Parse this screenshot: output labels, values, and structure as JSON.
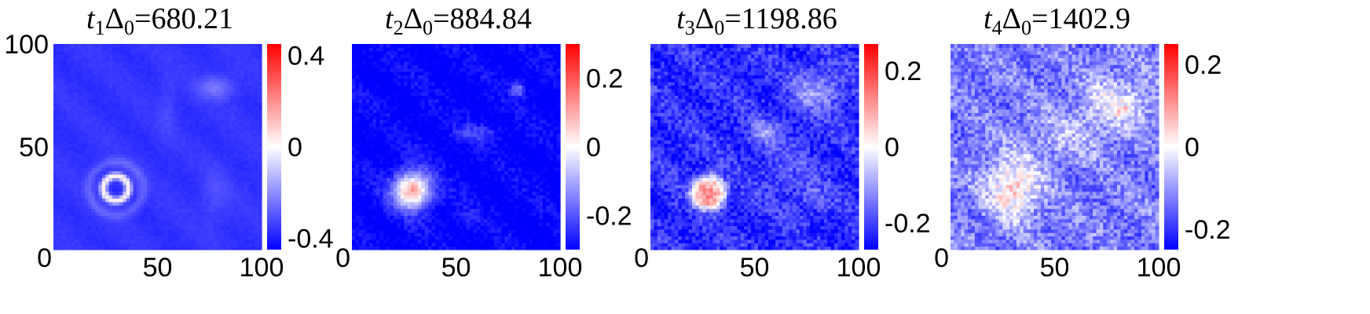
{
  "colors": {
    "low": "#0000ff",
    "mid": "#ffffff",
    "high": "#ff0000",
    "background": "#ffffff"
  },
  "chart_data": [
    {
      "type": "heatmap",
      "title": {
        "var": "t",
        "sub": "1",
        "sym": "Δ",
        "sub0": "0",
        "value": "=680.21"
      },
      "xlim": [
        0,
        100
      ],
      "ylim": [
        0,
        100
      ],
      "x_ticks": [
        "0",
        "50",
        "100"
      ],
      "y_ticks": [
        "0",
        "50",
        "100"
      ],
      "colorbar": {
        "min": -0.45,
        "max": 0.45,
        "ticks": [
          -0.4,
          0,
          0.4
        ],
        "tick_labels": [
          "-0.4",
          "0",
          "0.4"
        ]
      },
      "base": -0.36,
      "features": [
        {
          "shape": "ring",
          "x": 30,
          "y": 30,
          "r": 6,
          "width": 1.8,
          "amp": 0.4
        },
        {
          "shape": "ring",
          "x": 30,
          "y": 30,
          "r": 13,
          "width": 2.5,
          "amp": 0.08
        },
        {
          "shape": "blob",
          "x": 78,
          "y": 79,
          "sx": 6,
          "sy": 4,
          "amp": 0.12
        },
        {
          "shape": "blob",
          "x": 78,
          "y": 26,
          "sx": 5,
          "sy": 9,
          "amp": 0.05
        },
        {
          "shape": "blob",
          "x": 55,
          "y": 70,
          "sx": 3,
          "sy": 12,
          "amp": 0.035
        }
      ],
      "noise": 0.01
    },
    {
      "type": "heatmap",
      "title": {
        "var": "t",
        "sub": "2",
        "sym": "Δ",
        "sub0": "0",
        "value": "=884.84"
      },
      "xlim": [
        0,
        100
      ],
      "ylim": [
        0,
        100
      ],
      "x_ticks": [
        "0",
        "50",
        "100"
      ],
      "y_ticks": [],
      "colorbar": {
        "min": -0.3,
        "max": 0.3,
        "ticks": [
          -0.2,
          0,
          0.2
        ],
        "tick_labels": [
          "-0.2",
          "0",
          "0.2"
        ]
      },
      "base": -0.3,
      "features": [
        {
          "shape": "blob",
          "x": 29,
          "y": 29,
          "sx": 6,
          "sy": 6,
          "amp": 0.36
        },
        {
          "shape": "blob",
          "x": 29,
          "y": 29,
          "sx": 9,
          "sy": 9,
          "amp": 0.06
        },
        {
          "shape": "blob",
          "x": 80,
          "y": 78,
          "sx": 2.5,
          "sy": 2.5,
          "amp": 0.15
        },
        {
          "shape": "blob",
          "x": 60,
          "y": 57,
          "sx": 8,
          "sy": 3,
          "amp": 0.07
        },
        {
          "shape": "blob",
          "x": 55,
          "y": 15,
          "sx": 4,
          "sy": 4,
          "amp": 0.04
        }
      ],
      "noise": 0.03
    },
    {
      "type": "heatmap",
      "title": {
        "var": "t",
        "sub": "3",
        "sym": "Δ",
        "sub0": "0",
        "value": "=1198.86"
      },
      "xlim": [
        0,
        100
      ],
      "ylim": [
        0,
        100
      ],
      "x_ticks": [
        "0",
        "50",
        "100"
      ],
      "y_ticks": [],
      "colorbar": {
        "min": -0.27,
        "max": 0.27,
        "ticks": [
          -0.2,
          0,
          0.2
        ],
        "tick_labels": [
          "-0.2",
          "0",
          "0.2"
        ]
      },
      "base": -0.22,
      "features": [
        {
          "shape": "blob",
          "x": 28,
          "y": 28,
          "sx": 8,
          "sy": 8,
          "amp": 0.34,
          "flat": true
        },
        {
          "shape": "blob",
          "x": 80,
          "y": 78,
          "sx": 8,
          "sy": 7,
          "amp": 0.12
        },
        {
          "shape": "blob",
          "x": 55,
          "y": 57,
          "sx": 5,
          "sy": 4,
          "amp": 0.1
        },
        {
          "shape": "blob",
          "x": 78,
          "y": 25,
          "sx": 4,
          "sy": 4,
          "amp": 0.07
        },
        {
          "shape": "blob",
          "x": 65,
          "y": 40,
          "sx": 10,
          "sy": 10,
          "amp": 0.04
        }
      ],
      "noise": 0.05
    },
    {
      "type": "heatmap",
      "title": {
        "var": "t",
        "sub": "4",
        "sym": "Δ",
        "sub0": "0",
        "value": "=1402.9"
      },
      "xlim": [
        0,
        100
      ],
      "ylim": [
        0,
        100
      ],
      "x_ticks": [
        "0",
        "50",
        "100"
      ],
      "y_ticks": [],
      "colorbar": {
        "min": -0.25,
        "max": 0.25,
        "ticks": [
          -0.2,
          0,
          0.2
        ],
        "tick_labels": [
          "-0.2",
          "0",
          "0.2"
        ]
      },
      "base": -0.13,
      "features": [
        {
          "shape": "blob",
          "x": 30,
          "y": 30,
          "sx": 9,
          "sy": 10,
          "amp": 0.18
        },
        {
          "shape": "blob",
          "x": 80,
          "y": 72,
          "sx": 12,
          "sy": 9,
          "amp": 0.11
        },
        {
          "shape": "blob",
          "x": 83,
          "y": 68,
          "sx": 2,
          "sy": 2,
          "amp": 0.07
        },
        {
          "shape": "blob",
          "x": 55,
          "y": 55,
          "sx": 14,
          "sy": 8,
          "amp": 0.06
        }
      ],
      "noise": 0.06
    }
  ]
}
